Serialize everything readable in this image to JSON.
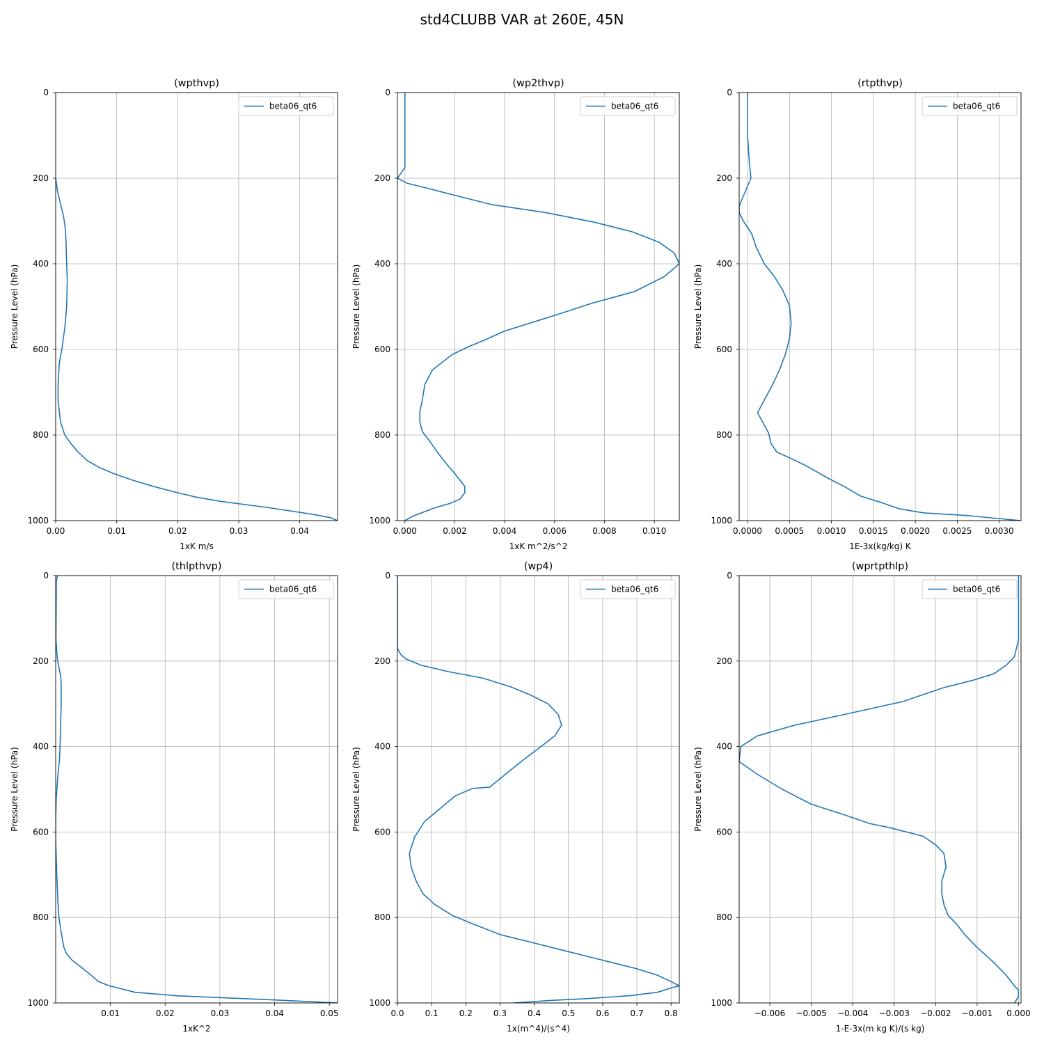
{
  "figure": {
    "title": "std4CLUBB VAR at 260E, 45N"
  },
  "chart_data": [
    {
      "type": "line",
      "title": "(wpthvp)",
      "xlabel": "1xK m/s",
      "ylabel": "Pressure Level (hPa)",
      "xlim": [
        0,
        0.0462
      ],
      "ylim": [
        1000,
        0
      ],
      "xticks": [
        "0.00",
        "0.01",
        "0.02",
        "0.03",
        "0.04"
      ],
      "xtick_values": [
        0,
        0.01,
        0.02,
        0.03,
        0.04
      ],
      "yticks": [
        "0",
        "200",
        "400",
        "600",
        "800",
        "1000"
      ],
      "ytick_values": [
        0,
        200,
        400,
        600,
        800,
        1000
      ],
      "grid": true,
      "legend": "top-right",
      "series": [
        {
          "name": "beta06_qt6",
          "x": [
            0,
            0.0003,
            0.0008,
            0.0013,
            0.0016,
            0.0017,
            0.0018,
            0.0019,
            0.0018,
            0.0015,
            0.001,
            0.0006,
            0.0004,
            0.0004,
            0.0008,
            0.0015,
            0.0025,
            0.0037,
            0.0052,
            0.007,
            0.0095,
            0.0125,
            0.016,
            0.02,
            0.023,
            0.027,
            0.035,
            0.042,
            0.045,
            0.0462
          ],
          "y": [
            200,
            230,
            260,
            290,
            320,
            350,
            400,
            440,
            500,
            550,
            600,
            630,
            680,
            720,
            770,
            800,
            820,
            840,
            860,
            875,
            890,
            905,
            920,
            935,
            945,
            955,
            970,
            985,
            993,
            1000
          ]
        }
      ]
    },
    {
      "type": "line",
      "title": "(wp2thvp)",
      "xlabel": "1xK m^2/s^2",
      "ylabel": "Pressure Level (hPa)",
      "xlim": [
        -0.0003,
        0.011
      ],
      "ylim": [
        1000,
        0
      ],
      "xticks": [
        "0.000",
        "0.002",
        "0.004",
        "0.006",
        "0.008",
        "0.010"
      ],
      "xtick_values": [
        0,
        0.002,
        0.004,
        0.006,
        0.008,
        0.01
      ],
      "yticks": [
        "0",
        "200",
        "400",
        "600",
        "800",
        "1000"
      ],
      "ytick_values": [
        0,
        200,
        400,
        600,
        800,
        1000
      ],
      "grid": true,
      "legend": "top-right",
      "series": [
        {
          "name": "beta06_qt6",
          "x": [
            0,
            0,
            0,
            0,
            -0.0003,
            0.0001,
            0.001,
            0.002,
            0.0035,
            0.0056,
            0.0076,
            0.0091,
            0.0102,
            0.0108,
            0.011,
            0.0104,
            0.0092,
            0.0075,
            0.0063,
            0.0051,
            0.004,
            0.0032,
            0.0025,
            0.0019,
            0.0015,
            0.0011,
            0.0008,
            0.0007,
            0.0006,
            0.0006,
            0.0007,
            0.001,
            0.0013,
            0.0017,
            0.002,
            0.0022,
            0.0024,
            0.0024,
            0.0022,
            0.0018,
            0.0012,
            0.0003,
            0
          ],
          "y": [
            0,
            100,
            165,
            175,
            200,
            212,
            225,
            240,
            262,
            280,
            303,
            325,
            350,
            375,
            400,
            430,
            465,
            492,
            515,
            537,
            557,
            578,
            595,
            612,
            630,
            648,
            682,
            718,
            745,
            770,
            792,
            815,
            840,
            870,
            890,
            905,
            920,
            935,
            950,
            960,
            970,
            990,
            1000
          ]
        }
      ]
    },
    {
      "type": "line",
      "title": "(rtpthvp)",
      "xlabel": "1E-3x(kg/kg) K",
      "ylabel": "Pressure Level (hPa)",
      "xlim": [
        -0.0001,
        0.00326
      ],
      "ylim": [
        1000,
        0
      ],
      "xticks": [
        "0.0000",
        "0.0005",
        "0.0010",
        "0.0015",
        "0.0020",
        "0.0025",
        "0.0030"
      ],
      "xtick_values": [
        0,
        0.0005,
        0.001,
        0.0015,
        0.002,
        0.0025,
        0.003
      ],
      "yticks": [
        "0",
        "200",
        "400",
        "600",
        "800",
        "1000"
      ],
      "ytick_values": [
        0,
        200,
        400,
        600,
        800,
        1000
      ],
      "grid": true,
      "legend": "top-right",
      "series": [
        {
          "name": "beta06_qt6",
          "x": [
            0,
            0,
            2e-05,
            4e-05,
            -0.0001,
            -0.0001,
            -5e-05,
            5e-05,
            0.0001,
            0.00015,
            0.0002,
            0.00032,
            0.00042,
            0.0005,
            0.00052,
            0.0005,
            0.00045,
            0.00038,
            0.0003,
            0.0002,
            0.00012,
            0.00018,
            0.00025,
            0.00028,
            0.00035,
            0.00052,
            0.0007,
            0.00095,
            0.00115,
            0.00135,
            0.0016,
            0.0018,
            0.0021,
            0.0026,
            0.00326
          ],
          "y": [
            0,
            100,
            160,
            200,
            265,
            280,
            300,
            330,
            360,
            380,
            400,
            430,
            462,
            498,
            538,
            575,
            612,
            648,
            682,
            718,
            748,
            770,
            795,
            820,
            840,
            855,
            872,
            900,
            920,
            943,
            958,
            972,
            982,
            988,
            1000
          ]
        }
      ]
    },
    {
      "type": "line",
      "title": "(thlpthvp)",
      "xlabel": "1xK^2",
      "ylabel": "Pressure Level (hPa)",
      "xlim": [
        0,
        0.0515
      ],
      "ylim": [
        1000,
        0
      ],
      "xticks": [
        "0.01",
        "0.02",
        "0.03",
        "0.04",
        "0.05"
      ],
      "xtick_values": [
        0.01,
        0.02,
        0.03,
        0.04,
        0.05
      ],
      "yticks": [
        "0",
        "200",
        "400",
        "600",
        "800",
        "1000"
      ],
      "ytick_values": [
        0,
        200,
        400,
        600,
        800,
        1000
      ],
      "grid": true,
      "legend": "top-right",
      "series": [
        {
          "name": "beta06_qt6",
          "x": [
            0.0003,
            0.0001,
            0.0001,
            5e-05,
            0.0003,
            0.0006,
            0.0009,
            0.001,
            0.001,
            0.0009,
            0.0008,
            0.0007,
            0.0004,
            0.0001,
            0,
            0,
            0.0002,
            0.0004,
            0.0006,
            0.001,
            0.0015,
            0.002,
            0.003,
            0.0045,
            0.006,
            0.0078,
            0.0098,
            0.0145,
            0.022,
            0.04,
            0.0515
          ],
          "y": [
            0,
            15,
            50,
            150,
            195,
            215,
            235,
            250,
            300,
            350,
            400,
            430,
            470,
            520,
            570,
            620,
            700,
            760,
            800,
            835,
            870,
            885,
            900,
            915,
            930,
            950,
            960,
            975,
            983,
            993,
            1000
          ]
        }
      ]
    },
    {
      "type": "line",
      "title": "(wp4)",
      "xlabel": "1x(m^4)/(s^4)",
      "ylabel": "Pressure Level (hPa)",
      "xlim": [
        0,
        0.824
      ],
      "ylim": [
        1000,
        0
      ],
      "xticks": [
        "0.0",
        "0.1",
        "0.2",
        "0.3",
        "0.4",
        "0.5",
        "0.6",
        "0.7",
        "0.8"
      ],
      "xtick_values": [
        0,
        0.1,
        0.2,
        0.3,
        0.4,
        0.5,
        0.6,
        0.7,
        0.8
      ],
      "yticks": [
        "0",
        "200",
        "400",
        "600",
        "800",
        "1000"
      ],
      "ytick_values": [
        0,
        200,
        400,
        600,
        800,
        1000
      ],
      "grid": true,
      "legend": "top-right",
      "series": [
        {
          "name": "beta06_qt6",
          "x": [
            0,
            0,
            0.01,
            0.025,
            0.07,
            0.15,
            0.25,
            0.33,
            0.39,
            0.44,
            0.47,
            0.48,
            0.46,
            0.42,
            0.37,
            0.32,
            0.27,
            0.22,
            0.17,
            0.14,
            0.08,
            0.05,
            0.035,
            0.04,
            0.055,
            0.075,
            0.11,
            0.16,
            0.22,
            0.3,
            0.4,
            0.5,
            0.6,
            0.7,
            0.76,
            0.8,
            0.824,
            0.8,
            0.76,
            0.68,
            0.55,
            0.45,
            0.34
          ],
          "y": [
            0,
            170,
            185,
            195,
            210,
            225,
            240,
            260,
            280,
            300,
            325,
            350,
            375,
            400,
            430,
            462,
            495,
            498,
            515,
            535,
            575,
            612,
            650,
            682,
            715,
            745,
            770,
            795,
            815,
            840,
            860,
            880,
            900,
            920,
            935,
            950,
            960,
            965,
            975,
            983,
            990,
            994,
            1000
          ]
        }
      ]
    },
    {
      "type": "line",
      "title": "(wprtpthlp)",
      "xlabel": "1-E-3x(m kg K)/(s kg)",
      "ylabel": "Pressure Level (hPa)",
      "xlim": [
        -0.00674,
        6e-05
      ],
      "ylim": [
        1000,
        0
      ],
      "xticks": [
        "−0.006",
        "−0.005",
        "−0.004",
        "−0.003",
        "−0.002",
        "−0.001",
        "0.000"
      ],
      "xtick_values": [
        -0.006,
        -0.005,
        -0.004,
        -0.003,
        -0.002,
        -0.001,
        0
      ],
      "yticks": [
        "0",
        "200",
        "400",
        "600",
        "800",
        "1000"
      ],
      "ytick_values": [
        0,
        200,
        400,
        600,
        800,
        1000
      ],
      "grid": true,
      "legend": "top-right",
      "series": [
        {
          "name": "beta06_qt6",
          "x": [
            0,
            0,
            -0.0001,
            -0.0003,
            -0.0006,
            -0.0011,
            -0.0018,
            -0.0028,
            -0.0042,
            -0.0054,
            -0.0063,
            -0.0067,
            -0.00674,
            -0.0063,
            -0.0057,
            -0.005,
            -0.0042,
            -0.0036,
            -0.0031,
            -0.0023,
            -0.002,
            -0.0018,
            -0.00175,
            -0.00185,
            -0.00185,
            -0.0018,
            -0.0017,
            -0.0015,
            -0.0013,
            -0.001,
            -0.0006,
            -0.0003,
            -0.0001,
            0,
            0,
            -0.0001
          ],
          "y": [
            0,
            150,
            190,
            210,
            230,
            245,
            262,
            295,
            325,
            350,
            375,
            400,
            435,
            465,
            500,
            535,
            560,
            580,
            590,
            610,
            630,
            650,
            682,
            715,
            745,
            770,
            795,
            815,
            840,
            870,
            905,
            935,
            960,
            970,
            985,
            1000
          ]
        }
      ]
    }
  ]
}
